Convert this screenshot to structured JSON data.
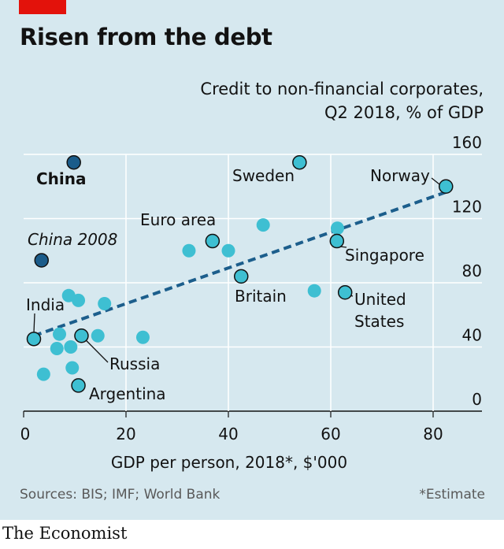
{
  "header": {
    "title": "Risen from the debt",
    "subtitle_line1": "Credit to non-financial corporates,",
    "subtitle_line2": "Q2 2018, % of GDP"
  },
  "footer": {
    "source": "Sources: BIS; IMF; World Bank",
    "footnote": "*Estimate",
    "brand": "The Economist"
  },
  "colors": {
    "background": "#d6e8ef",
    "accent_red": "#e3120b",
    "dot_light": "#3ebfd2",
    "dot_dark": "#1b5c8a",
    "trend": "#1c5e8c",
    "grid": "#ffffff"
  },
  "chart_data": {
    "type": "scatter",
    "xlabel": "GDP per person, 2018*, $'000",
    "x_ticks": [
      0,
      20,
      40,
      60,
      80
    ],
    "y_ticks": [
      0,
      40,
      80,
      120,
      160
    ],
    "xlim": [
      0,
      88
    ],
    "ylim": [
      0,
      160
    ],
    "grid": true,
    "y_axis_side": "right",
    "trend_line": {
      "x": [
        2,
        83
      ],
      "y": [
        47,
        137
      ],
      "style": "dashed"
    },
    "labelled_points": [
      {
        "label": "China",
        "x": 9.8,
        "y": 155,
        "highlight": "dark",
        "bold": true
      },
      {
        "label": "China 2008",
        "x": 3.5,
        "y": 94,
        "highlight": "dark",
        "italic": true
      },
      {
        "label": "Sweden",
        "x": 53.9,
        "y": 155,
        "highlight": "outlined"
      },
      {
        "label": "Norway",
        "x": 82.5,
        "y": 140,
        "highlight": "outlined"
      },
      {
        "label": "Euro area",
        "x": 36.9,
        "y": 106,
        "highlight": "outlined"
      },
      {
        "label": "Singapore",
        "x": 61.2,
        "y": 106,
        "highlight": "outlined"
      },
      {
        "label": "Britain",
        "x": 42.5,
        "y": 84,
        "highlight": "outlined"
      },
      {
        "label": "United States",
        "x": 62.8,
        "y": 74,
        "highlight": "outlined"
      },
      {
        "label": "India",
        "x": 2.0,
        "y": 45,
        "highlight": "outlined"
      },
      {
        "label": "Russia",
        "x": 11.3,
        "y": 47,
        "highlight": "outlined"
      },
      {
        "label": "Argentina",
        "x": 10.7,
        "y": 16,
        "highlight": "outlined"
      }
    ],
    "other_points": [
      {
        "x": 46.8,
        "y": 116
      },
      {
        "x": 61.3,
        "y": 114
      },
      {
        "x": 32.3,
        "y": 100
      },
      {
        "x": 40.0,
        "y": 100
      },
      {
        "x": 56.8,
        "y": 75
      },
      {
        "x": 8.8,
        "y": 72
      },
      {
        "x": 10.7,
        "y": 69
      },
      {
        "x": 15.8,
        "y": 67
      },
      {
        "x": 7.0,
        "y": 48
      },
      {
        "x": 14.5,
        "y": 47
      },
      {
        "x": 23.3,
        "y": 46
      },
      {
        "x": 6.5,
        "y": 39
      },
      {
        "x": 9.2,
        "y": 40
      },
      {
        "x": 9.5,
        "y": 27
      },
      {
        "x": 3.9,
        "y": 23
      }
    ]
  },
  "labels": {
    "china": "China",
    "china_2008": "China 2008",
    "sweden": "Sweden",
    "norway": "Norway",
    "euro_area": "Euro area",
    "singapore": "Singapore",
    "britain": "Britain",
    "united": "United",
    "states": "States",
    "india": "India",
    "russia": "Russia",
    "argentina": "Argentina"
  }
}
